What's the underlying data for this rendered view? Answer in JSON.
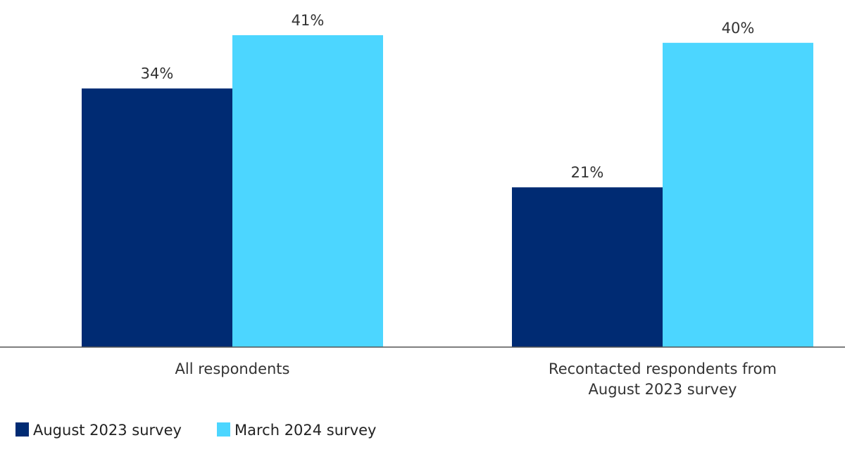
{
  "chart_data": {
    "type": "bar",
    "categories": [
      [
        "All respondents"
      ],
      [
        "Recontacted respondents from",
        "August 2023 survey"
      ]
    ],
    "series": [
      {
        "name": "August 2023 survey",
        "values": [
          34,
          21
        ],
        "color": "#002b73"
      },
      {
        "name": "March 2024 survey",
        "values": [
          41,
          40
        ],
        "color": "#4cd6ff"
      }
    ],
    "value_suffix": "%",
    "ylim": [
      0,
      41
    ],
    "grid": false,
    "legend": "bottom-left"
  }
}
